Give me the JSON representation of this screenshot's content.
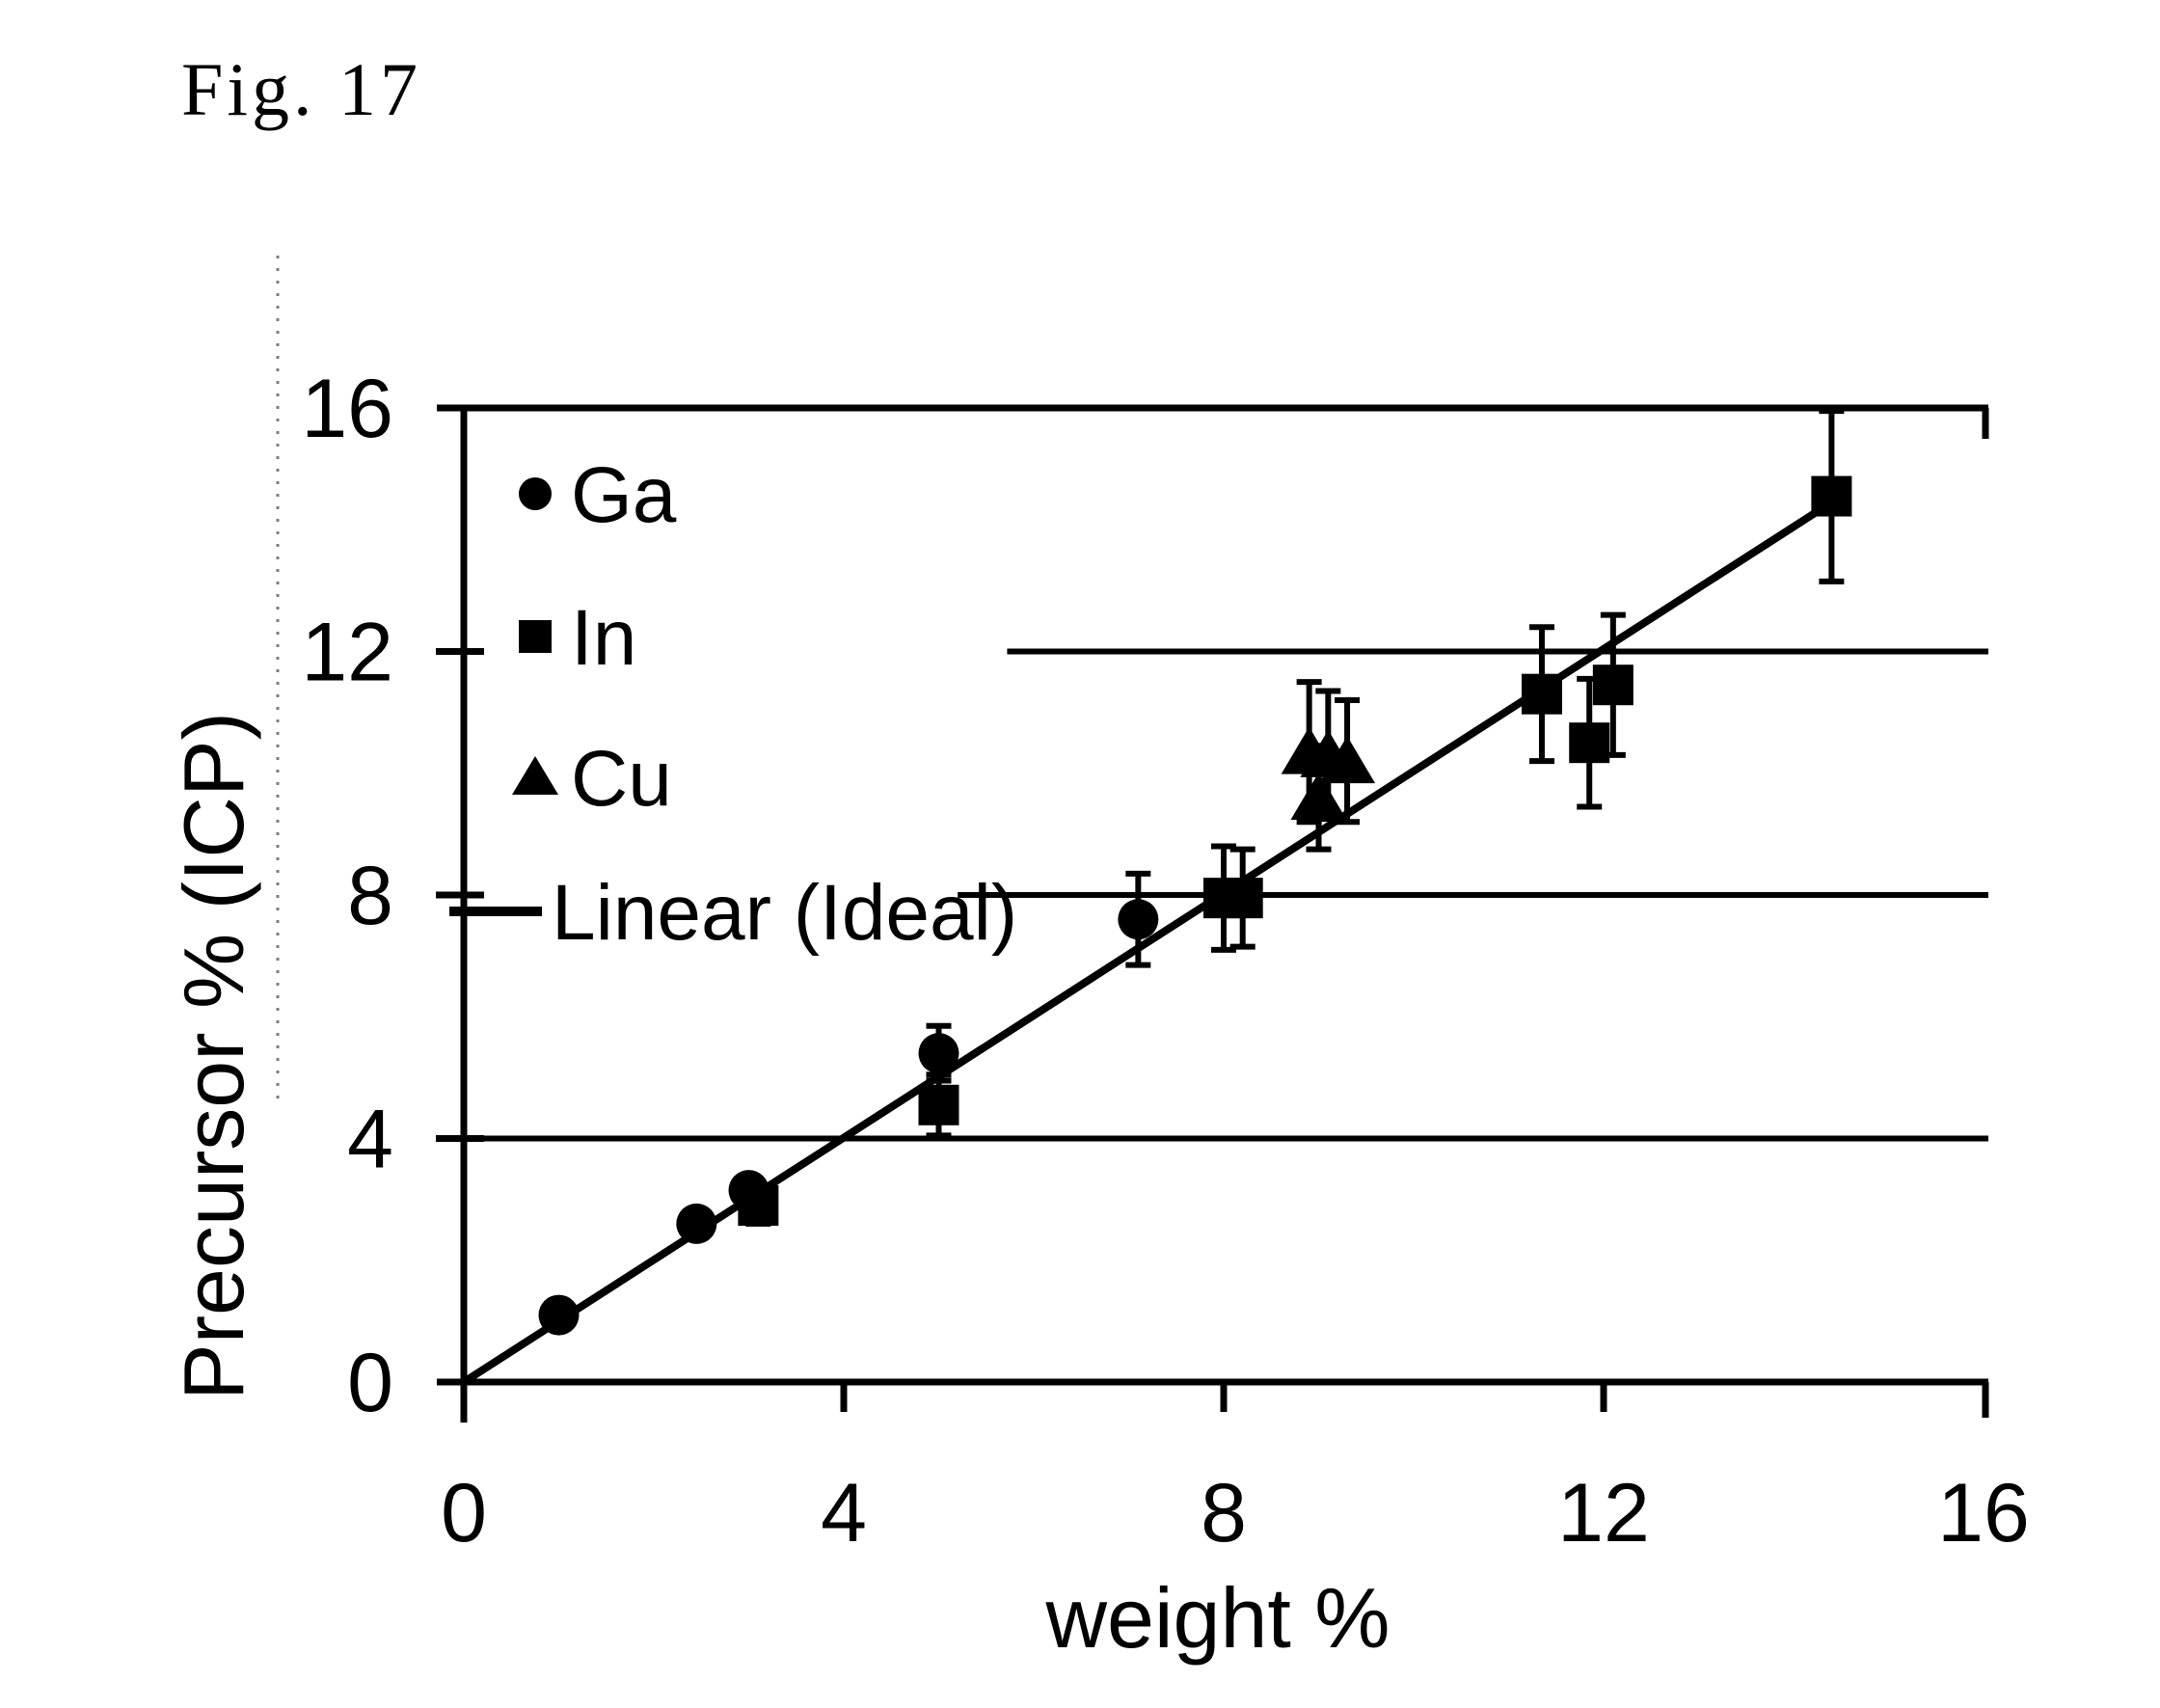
{
  "fig_label": "Fig. 17",
  "chart_data": {
    "type": "scatter",
    "title": "",
    "xlabel": "weight %",
    "ylabel": "Precursor % (ICP)",
    "xlim": [
      0,
      16
    ],
    "ylim": [
      0,
      16
    ],
    "xticks": [
      0,
      4,
      8,
      12,
      16
    ],
    "yticks": [
      0,
      4,
      8,
      12,
      16
    ],
    "grid": "horizontal gridlines at y=4,8,12,16; lines at y=8 and y=12 start mid-plot (interrupted by legend); no vertical gridlines",
    "legend_position": "inside plot, top-left",
    "colors": {
      "foreground": "#000000",
      "background": "#ffffff"
    },
    "gridlines_y": [
      {
        "y": 4,
        "x_start": 0
      },
      {
        "y": 8,
        "x_start": 5.2
      },
      {
        "y": 12,
        "x_start": 5.72
      }
    ],
    "series": [
      {
        "name": "Ga",
        "marker": "circle",
        "points": [
          {
            "x": 1.0,
            "y": 1.1,
            "err": 0.15
          },
          {
            "x": 2.45,
            "y": 2.6,
            "err": 0.2
          },
          {
            "x": 3.0,
            "y": 3.15,
            "err": 0.2
          },
          {
            "x": 5.0,
            "y": 5.4,
            "err": 0.45
          },
          {
            "x": 7.1,
            "y": 7.6,
            "err": 0.75
          }
        ]
      },
      {
        "name": "In",
        "marker": "square",
        "points": [
          {
            "x": 3.1,
            "y": 2.9,
            "err": 0.3
          },
          {
            "x": 5.0,
            "y": 4.55,
            "err": 0.5
          },
          {
            "x": 8.0,
            "y": 7.95,
            "err": 0.85
          },
          {
            "x": 8.2,
            "y": 7.95,
            "err": 0.8
          },
          {
            "x": 11.35,
            "y": 11.3,
            "err": 1.1
          },
          {
            "x": 11.85,
            "y": 10.5,
            "err": 1.05
          },
          {
            "x": 12.1,
            "y": 11.45,
            "err": 1.15
          },
          {
            "x": 14.4,
            "y": 14.55,
            "err": 1.4
          }
        ]
      },
      {
        "name": "Cu",
        "marker": "triangle",
        "points": [
          {
            "x": 8.9,
            "y": 10.35,
            "err": 1.15
          },
          {
            "x": 9.1,
            "y": 10.3,
            "err": 1.05
          },
          {
            "x": 9.3,
            "y": 10.2,
            "err": 1.0
          },
          {
            "x": 9.0,
            "y": 9.6,
            "err": 0.85
          }
        ]
      },
      {
        "name": "Linear (Ideal)",
        "marker": "line",
        "line_from": [
          0,
          0
        ],
        "line_to": [
          14.5,
          14.55
        ]
      }
    ]
  }
}
